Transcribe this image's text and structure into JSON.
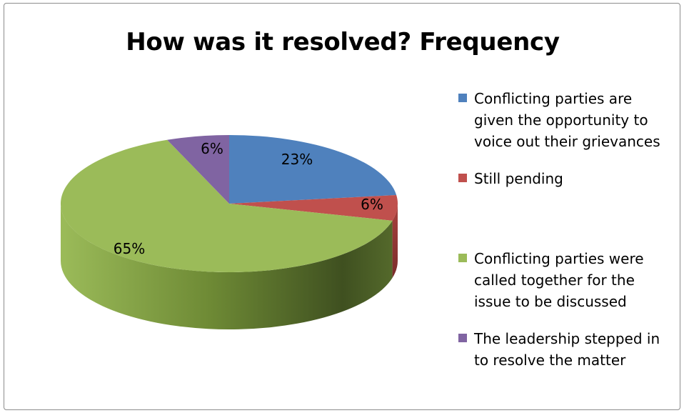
{
  "chart_data": {
    "type": "pie",
    "title": "How was it resolved? Frequency",
    "slices": [
      {
        "label": "Conflicting parties are given the opportunity to voice out their grievances",
        "value": 23,
        "display": "23%",
        "color": "#4f81bd"
      },
      {
        "label": "Still pending",
        "value": 6,
        "display": "6%",
        "color": "#c0504d"
      },
      {
        "label": "Conflicting parties were called together for the issue to be discussed",
        "value": 65,
        "display": "65%",
        "color": "#9bbb59"
      },
      {
        "label": "The leadership stepped in to resolve the matter",
        "value": 6,
        "display": "6%",
        "color": "#8064a2"
      }
    ],
    "legend_position": "right",
    "style": "3d-pie"
  }
}
